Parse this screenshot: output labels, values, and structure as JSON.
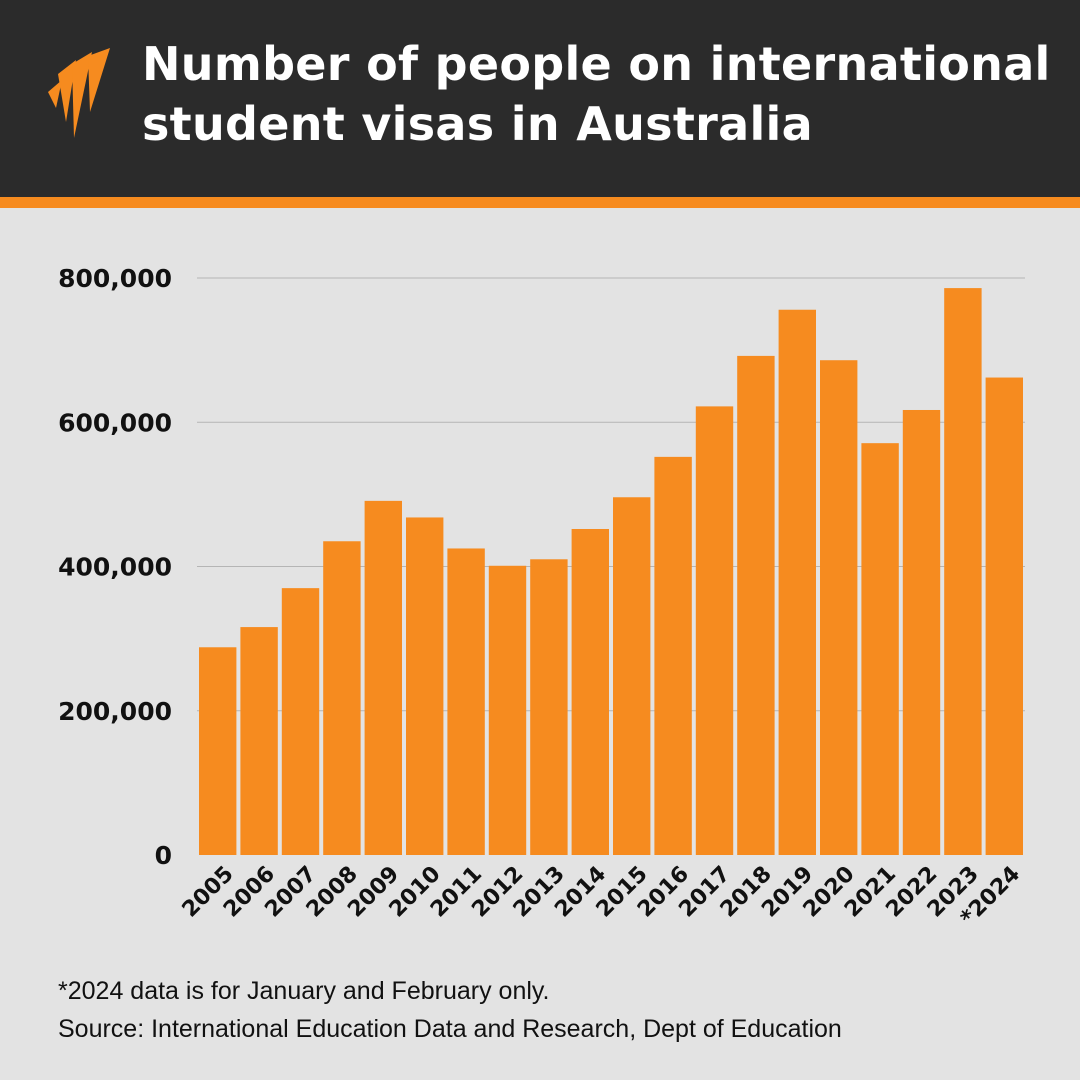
{
  "header": {
    "title_lines": [
      "Number of people on international",
      "student visas in Australia"
    ]
  },
  "colors": {
    "header_bg": "#2b2b2b",
    "accent": "#f68b1f",
    "bar": "#f68b1f",
    "background": "#e3e3e3",
    "grid": "#b5b5b5"
  },
  "logo": {
    "icon": "sbs-wave-logo-icon"
  },
  "chart_data": {
    "type": "bar",
    "categories": [
      "2005",
      "2006",
      "2007",
      "2008",
      "2009",
      "2010",
      "2011",
      "2012",
      "2013",
      "2014",
      "2015",
      "2016",
      "2017",
      "2018",
      "2019",
      "2020",
      "2021",
      "2022",
      "2023",
      "*2024"
    ],
    "values": [
      288000,
      316000,
      370000,
      435000,
      491000,
      468000,
      425000,
      401000,
      410000,
      452000,
      496000,
      552000,
      622000,
      692000,
      756000,
      686000,
      571000,
      617000,
      786000,
      662000
    ],
    "yticks": [
      0,
      200000,
      400000,
      600000,
      800000
    ],
    "ytick_labels": [
      "0",
      "200,000",
      "400,000",
      "600,000",
      "800,000"
    ],
    "ylim": [
      0,
      800000
    ],
    "grid": true,
    "title": "Number of people on international student visas in Australia",
    "xlabel": "",
    "ylabel": ""
  },
  "footnote": "*2024 data is for January and February only.",
  "source": "Source: International Education Data and Research, Dept of Education"
}
